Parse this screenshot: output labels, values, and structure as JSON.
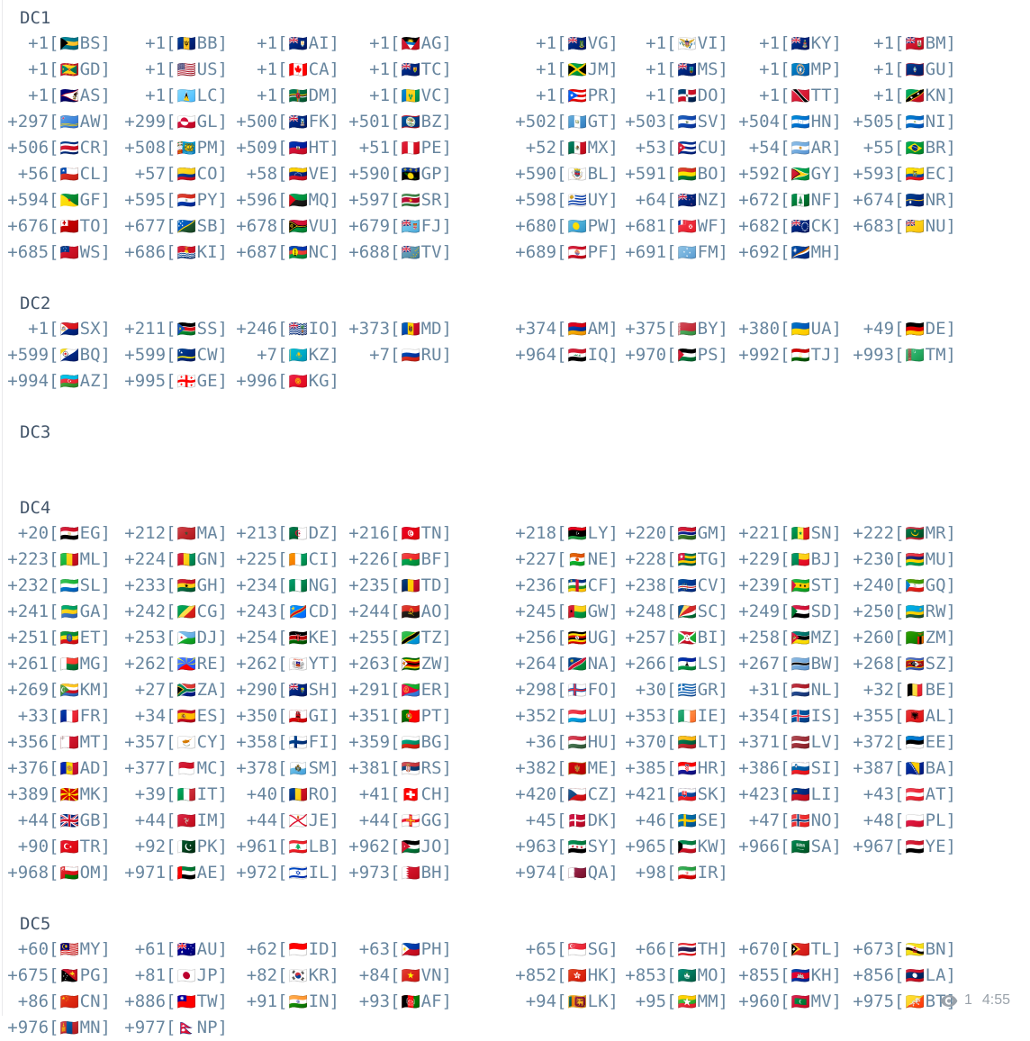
{
  "colors": {
    "header_text": "#43556a",
    "code_text": "#68869f",
    "meta_text": "#9aa2aa",
    "background": "#ffffff"
  },
  "message": {
    "sections": [
      {
        "title": "DC1",
        "entries": [
          [
            "+1",
            "BS"
          ],
          [
            "+1",
            "BB"
          ],
          [
            "+1",
            "AI"
          ],
          [
            "+1",
            "AG"
          ],
          [
            "+1",
            "VG"
          ],
          [
            "+1",
            "VI"
          ],
          [
            "+1",
            "KY"
          ],
          [
            "+1",
            "BM"
          ],
          [
            "+1",
            "GD"
          ],
          [
            "+1",
            "US"
          ],
          [
            "+1",
            "CA"
          ],
          [
            "+1",
            "TC"
          ],
          [
            "+1",
            "JM"
          ],
          [
            "+1",
            "MS"
          ],
          [
            "+1",
            "MP"
          ],
          [
            "+1",
            "GU"
          ],
          [
            "+1",
            "AS"
          ],
          [
            "+1",
            "LC"
          ],
          [
            "+1",
            "DM"
          ],
          [
            "+1",
            "VC"
          ],
          [
            "+1",
            "PR"
          ],
          [
            "+1",
            "DO"
          ],
          [
            "+1",
            "TT"
          ],
          [
            "+1",
            "KN"
          ],
          [
            "+297",
            "AW"
          ],
          [
            "+299",
            "GL"
          ],
          [
            "+500",
            "FK"
          ],
          [
            "+501",
            "BZ"
          ],
          [
            "+502",
            "GT"
          ],
          [
            "+503",
            "SV"
          ],
          [
            "+504",
            "HN"
          ],
          [
            "+505",
            "NI"
          ],
          [
            "+506",
            "CR"
          ],
          [
            "+508",
            "PM"
          ],
          [
            "+509",
            "HT"
          ],
          [
            "+51",
            "PE"
          ],
          [
            "+52",
            "MX"
          ],
          [
            "+53",
            "CU"
          ],
          [
            "+54",
            "AR"
          ],
          [
            "+55",
            "BR"
          ],
          [
            "+56",
            "CL"
          ],
          [
            "+57",
            "CO"
          ],
          [
            "+58",
            "VE"
          ],
          [
            "+590",
            "GP"
          ],
          [
            "+590",
            "BL"
          ],
          [
            "+591",
            "BO"
          ],
          [
            "+592",
            "GY"
          ],
          [
            "+593",
            "EC"
          ],
          [
            "+594",
            "GF"
          ],
          [
            "+595",
            "PY"
          ],
          [
            "+596",
            "MQ"
          ],
          [
            "+597",
            "SR"
          ],
          [
            "+598",
            "UY"
          ],
          [
            "+64",
            "NZ"
          ],
          [
            "+672",
            "NF"
          ],
          [
            "+674",
            "NR"
          ],
          [
            "+676",
            "TO"
          ],
          [
            "+677",
            "SB"
          ],
          [
            "+678",
            "VU"
          ],
          [
            "+679",
            "FJ"
          ],
          [
            "+680",
            "PW"
          ],
          [
            "+681",
            "WF"
          ],
          [
            "+682",
            "CK"
          ],
          [
            "+683",
            "NU"
          ],
          [
            "+685",
            "WS"
          ],
          [
            "+686",
            "KI"
          ],
          [
            "+687",
            "NC"
          ],
          [
            "+688",
            "TV"
          ],
          [
            "+689",
            "PF"
          ],
          [
            "+691",
            "FM"
          ],
          [
            "+692",
            "MH"
          ]
        ]
      },
      {
        "title": "DC2",
        "entries": [
          [
            "+1",
            "SX"
          ],
          [
            "+211",
            "SS"
          ],
          [
            "+246",
            "IO"
          ],
          [
            "+373",
            "MD"
          ],
          [
            "+374",
            "AM"
          ],
          [
            "+375",
            "BY"
          ],
          [
            "+380",
            "UA"
          ],
          [
            "+49",
            "DE"
          ],
          [
            "+599",
            "BQ"
          ],
          [
            "+599",
            "CW"
          ],
          [
            "+7",
            "KZ"
          ],
          [
            "+7",
            "RU"
          ],
          [
            "+964",
            "IQ"
          ],
          [
            "+970",
            "PS"
          ],
          [
            "+992",
            "TJ"
          ],
          [
            "+993",
            "TM"
          ],
          [
            "+994",
            "AZ"
          ],
          [
            "+995",
            "GE"
          ],
          [
            "+996",
            "KG"
          ]
        ]
      },
      {
        "title": "DC3",
        "entries": []
      },
      {
        "title": "DC4",
        "entries": [
          [
            "+20",
            "EG"
          ],
          [
            "+212",
            "MA"
          ],
          [
            "+213",
            "DZ"
          ],
          [
            "+216",
            "TN"
          ],
          [
            "+218",
            "LY"
          ],
          [
            "+220",
            "GM"
          ],
          [
            "+221",
            "SN"
          ],
          [
            "+222",
            "MR"
          ],
          [
            "+223",
            "ML"
          ],
          [
            "+224",
            "GN"
          ],
          [
            "+225",
            "CI"
          ],
          [
            "+226",
            "BF"
          ],
          [
            "+227",
            "NE"
          ],
          [
            "+228",
            "TG"
          ],
          [
            "+229",
            "BJ"
          ],
          [
            "+230",
            "MU"
          ],
          [
            "+232",
            "SL"
          ],
          [
            "+233",
            "GH"
          ],
          [
            "+234",
            "NG"
          ],
          [
            "+235",
            "TD"
          ],
          [
            "+236",
            "CF"
          ],
          [
            "+238",
            "CV"
          ],
          [
            "+239",
            "ST"
          ],
          [
            "+240",
            "GQ"
          ],
          [
            "+241",
            "GA"
          ],
          [
            "+242",
            "CG"
          ],
          [
            "+243",
            "CD"
          ],
          [
            "+244",
            "AO"
          ],
          [
            "+245",
            "GW"
          ],
          [
            "+248",
            "SC"
          ],
          [
            "+249",
            "SD"
          ],
          [
            "+250",
            "RW"
          ],
          [
            "+251",
            "ET"
          ],
          [
            "+253",
            "DJ"
          ],
          [
            "+254",
            "KE"
          ],
          [
            "+255",
            "TZ"
          ],
          [
            "+256",
            "UG"
          ],
          [
            "+257",
            "BI"
          ],
          [
            "+258",
            "MZ"
          ],
          [
            "+260",
            "ZM"
          ],
          [
            "+261",
            "MG"
          ],
          [
            "+262",
            "RE"
          ],
          [
            "+262",
            "YT"
          ],
          [
            "+263",
            "ZW"
          ],
          [
            "+264",
            "NA"
          ],
          [
            "+266",
            "LS"
          ],
          [
            "+267",
            "BW"
          ],
          [
            "+268",
            "SZ"
          ],
          [
            "+269",
            "KM"
          ],
          [
            "+27",
            "ZA"
          ],
          [
            "+290",
            "SH"
          ],
          [
            "+291",
            "ER"
          ],
          [
            "+298",
            "FO"
          ],
          [
            "+30",
            "GR"
          ],
          [
            "+31",
            "NL"
          ],
          [
            "+32",
            "BE"
          ],
          [
            "+33",
            "FR"
          ],
          [
            "+34",
            "ES"
          ],
          [
            "+350",
            "GI"
          ],
          [
            "+351",
            "PT"
          ],
          [
            "+352",
            "LU"
          ],
          [
            "+353",
            "IE"
          ],
          [
            "+354",
            "IS"
          ],
          [
            "+355",
            "AL"
          ],
          [
            "+356",
            "MT"
          ],
          [
            "+357",
            "CY"
          ],
          [
            "+358",
            "FI"
          ],
          [
            "+359",
            "BG"
          ],
          [
            "+36",
            "HU"
          ],
          [
            "+370",
            "LT"
          ],
          [
            "+371",
            "LV"
          ],
          [
            "+372",
            "EE"
          ],
          [
            "+376",
            "AD"
          ],
          [
            "+377",
            "MC"
          ],
          [
            "+378",
            "SM"
          ],
          [
            "+381",
            "RS"
          ],
          [
            "+382",
            "ME"
          ],
          [
            "+385",
            "HR"
          ],
          [
            "+386",
            "SI"
          ],
          [
            "+387",
            "BA"
          ],
          [
            "+389",
            "MK"
          ],
          [
            "+39",
            "IT"
          ],
          [
            "+40",
            "RO"
          ],
          [
            "+41",
            "CH"
          ],
          [
            "+420",
            "CZ"
          ],
          [
            "+421",
            "SK"
          ],
          [
            "+423",
            "LI"
          ],
          [
            "+43",
            "AT"
          ],
          [
            "+44",
            "GB"
          ],
          [
            "+44",
            "IM"
          ],
          [
            "+44",
            "JE"
          ],
          [
            "+44",
            "GG"
          ],
          [
            "+45",
            "DK"
          ],
          [
            "+46",
            "SE"
          ],
          [
            "+47",
            "NO"
          ],
          [
            "+48",
            "PL"
          ],
          [
            "+90",
            "TR"
          ],
          [
            "+92",
            "PK"
          ],
          [
            "+961",
            "LB"
          ],
          [
            "+962",
            "JO"
          ],
          [
            "+963",
            "SY"
          ],
          [
            "+965",
            "KW"
          ],
          [
            "+966",
            "SA"
          ],
          [
            "+967",
            "YE"
          ],
          [
            "+968",
            "OM"
          ],
          [
            "+971",
            "AE"
          ],
          [
            "+972",
            "IL"
          ],
          [
            "+973",
            "BH"
          ],
          [
            "+974",
            "QA"
          ],
          [
            "+98",
            "IR"
          ]
        ]
      },
      {
        "title": "DC5",
        "entries": [
          [
            "+60",
            "MY"
          ],
          [
            "+61",
            "AU"
          ],
          [
            "+62",
            "ID"
          ],
          [
            "+63",
            "PH"
          ],
          [
            "+65",
            "SG"
          ],
          [
            "+66",
            "TH"
          ],
          [
            "+670",
            "TL"
          ],
          [
            "+673",
            "BN"
          ],
          [
            "+675",
            "PG"
          ],
          [
            "+81",
            "JP"
          ],
          [
            "+82",
            "KR"
          ],
          [
            "+84",
            "VN"
          ],
          [
            "+852",
            "HK"
          ],
          [
            "+853",
            "MO"
          ],
          [
            "+855",
            "KH"
          ],
          [
            "+856",
            "LA"
          ],
          [
            "+86",
            "CN"
          ],
          [
            "+886",
            "TW"
          ],
          [
            "+91",
            "IN"
          ],
          [
            "+93",
            "AF"
          ],
          [
            "+94",
            "LK"
          ],
          [
            "+95",
            "MM"
          ],
          [
            "+960",
            "MV"
          ],
          [
            "+975",
            "BT"
          ],
          [
            "+976",
            "MN"
          ],
          [
            "+977",
            "NP"
          ]
        ]
      }
    ],
    "footer": {
      "views_icon": "eye-icon",
      "views": "1",
      "time": "4:55"
    }
  }
}
